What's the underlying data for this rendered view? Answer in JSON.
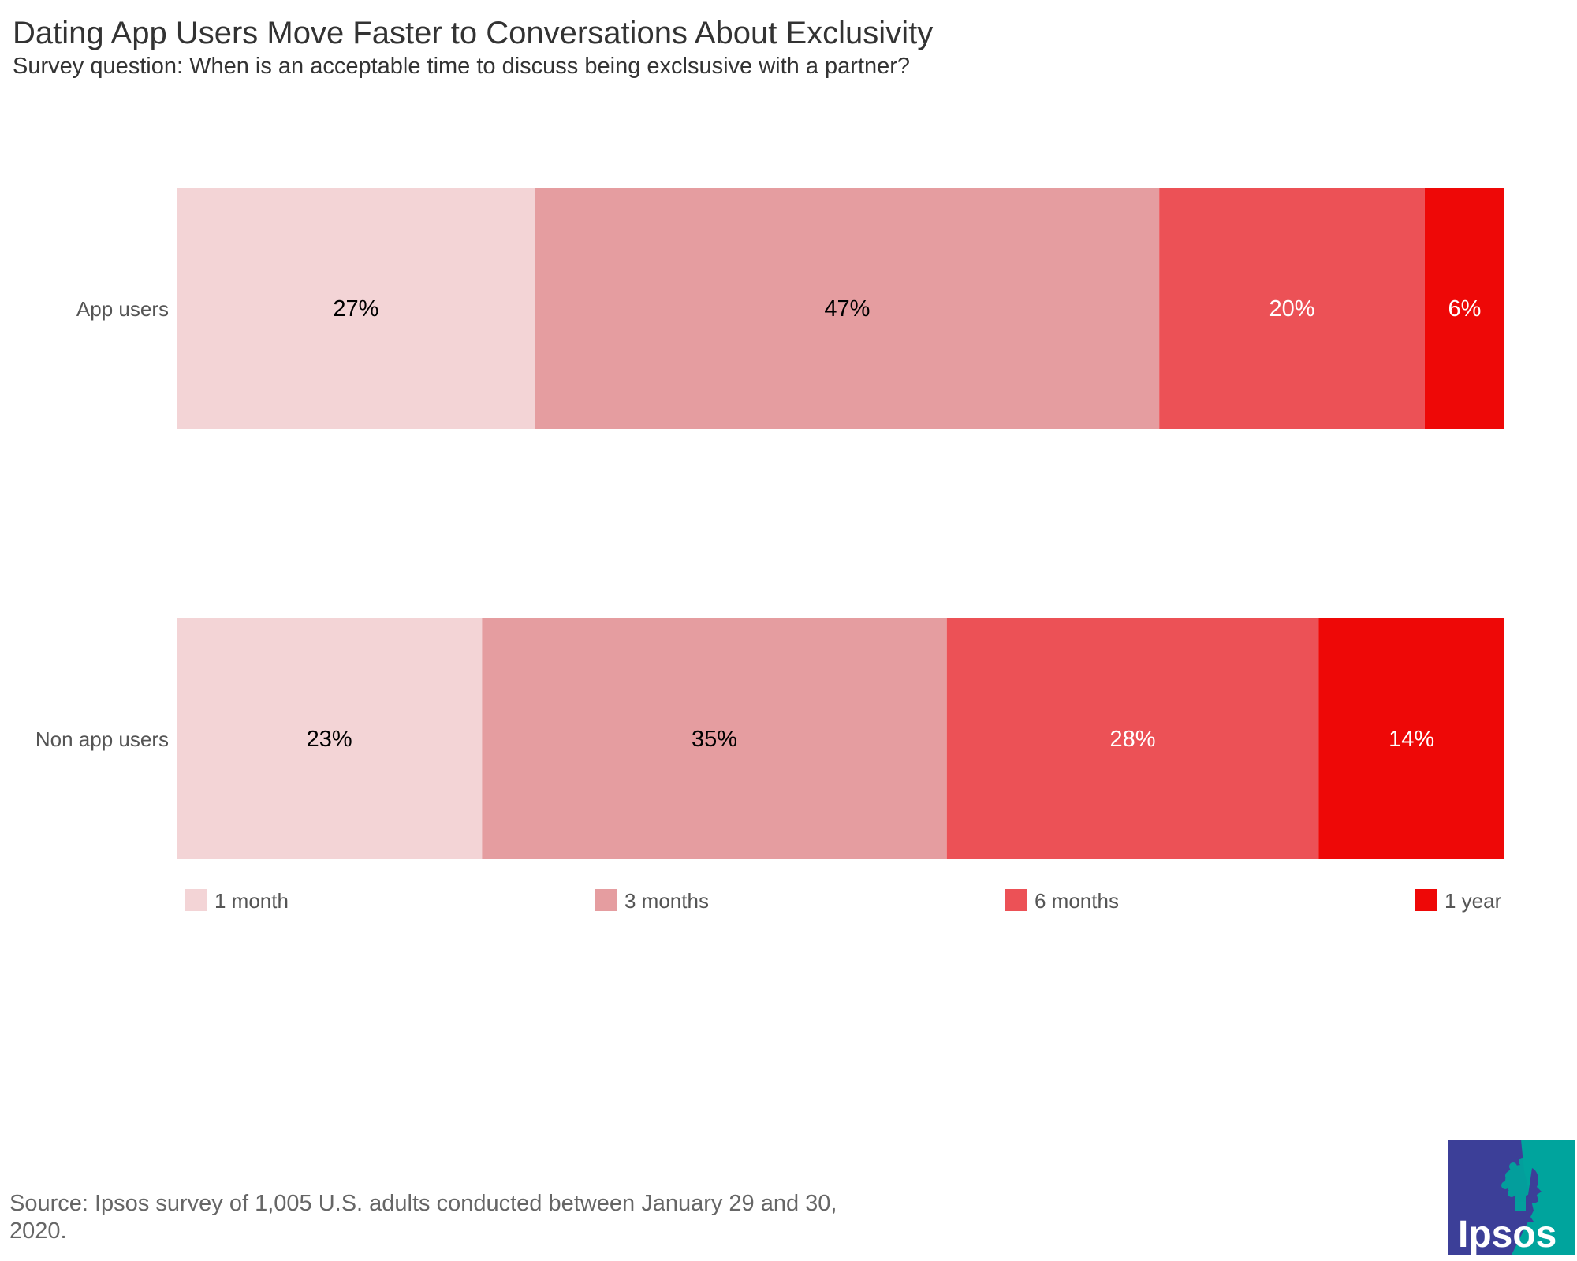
{
  "chart_data": {
    "type": "bar",
    "orientation": "horizontal",
    "stacked": true,
    "title": "Dating App Users Move Faster to Conversations About Exclusivity",
    "subtitle": "Survey question: When is an acceptable time to discuss being exclsusive with a partner?",
    "categories": [
      "App users",
      "Non app users"
    ],
    "series": [
      {
        "name": "1 month",
        "color": "#f3d4d6",
        "label_color": "#000000",
        "values": [
          27,
          23
        ],
        "labels": [
          "27%",
          "23%"
        ]
      },
      {
        "name": "3 months",
        "color": "#e59da0",
        "label_color": "#000000",
        "values": [
          47,
          35
        ],
        "labels": [
          "47%",
          "35%"
        ]
      },
      {
        "name": "6 months",
        "color": "#ec5156",
        "label_color": "#ffffff",
        "values": [
          20,
          28
        ],
        "labels": [
          "20%",
          "28%"
        ]
      },
      {
        "name": "1 year",
        "color": "#ee0807",
        "label_color": "#ffffff",
        "values": [
          6,
          14
        ],
        "labels": [
          "6%",
          "14%"
        ]
      }
    ],
    "xlim": [
      0,
      100
    ],
    "legend_position": "bottom",
    "grid": false
  },
  "footnote": "Source: Ipsos survey of 1,005 U.S. adults conducted between January 29 and 30, 2020.",
  "logo": {
    "text": "Ipsos",
    "colors": {
      "left": "#3c3f98",
      "right": "#00a49d",
      "text": "#ffffff"
    }
  }
}
